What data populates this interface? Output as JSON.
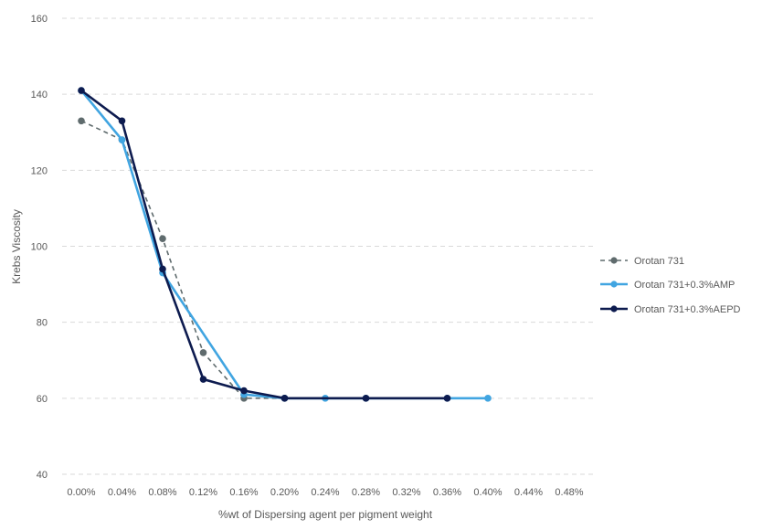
{
  "chart_data": {
    "type": "line",
    "title": "",
    "xlabel": "%wt of Dispersing agent per pigment weight",
    "ylabel": "Krebs Viscosity",
    "x_ticks": [
      "0.00%",
      "0.04%",
      "0.08%",
      "0.12%",
      "0.16%",
      "0.20%",
      "0.24%",
      "0.28%",
      "0.32%",
      "0.36%",
      "0.40%",
      "0.44%",
      "0.48%"
    ],
    "xlim": [
      0,
      0.48
    ],
    "ylim": [
      40,
      160
    ],
    "y_ticks": [
      "40",
      "60",
      "80",
      "100",
      "120",
      "140",
      "160"
    ],
    "y_tick_values": [
      40,
      60,
      80,
      100,
      120,
      140,
      160
    ],
    "grid": true,
    "legend_position": "right",
    "series": [
      {
        "name": "Orotan 731",
        "color": "#5f6b6d",
        "dashed": true,
        "x": [
          0.0,
          0.04,
          0.08,
          0.12,
          0.16,
          0.2
        ],
        "values": [
          133,
          128,
          102,
          72,
          60,
          60
        ]
      },
      {
        "name": "Orotan 731+0.3%AMP",
        "color": "#41a5e1",
        "dashed": false,
        "x": [
          0.0,
          0.04,
          0.08,
          0.16,
          0.2,
          0.24,
          0.28,
          0.36,
          0.4
        ],
        "values": [
          141,
          128,
          93,
          61,
          60,
          60,
          60,
          60,
          60
        ]
      },
      {
        "name": "Orotan 731+0.3%AEPD",
        "color": "#0d1b4f",
        "dashed": false,
        "x": [
          0.0,
          0.04,
          0.08,
          0.12,
          0.16,
          0.2,
          0.28,
          0.36
        ],
        "values": [
          141,
          133,
          94,
          65,
          62,
          60,
          60,
          60
        ]
      }
    ]
  }
}
